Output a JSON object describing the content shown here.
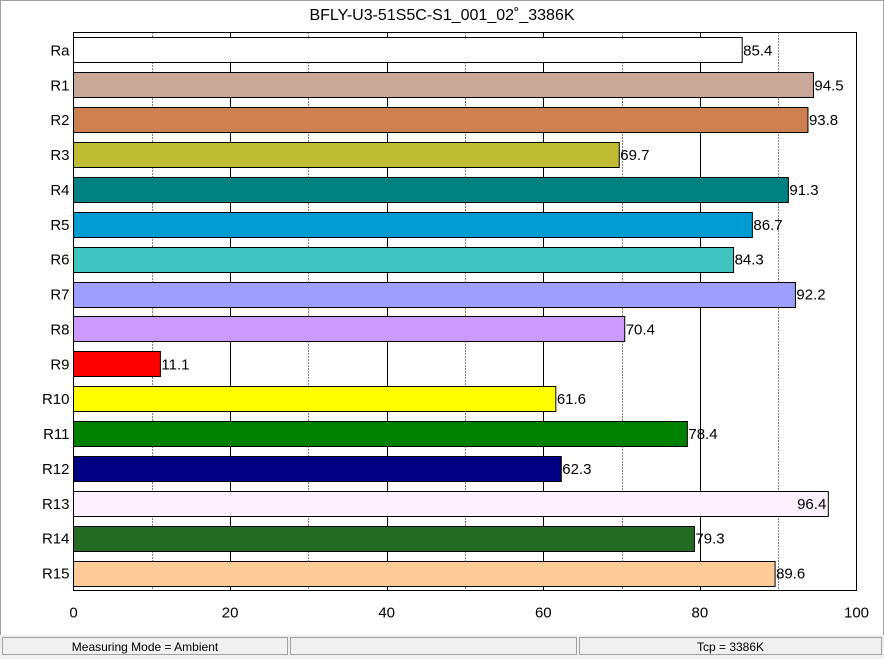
{
  "chart_data": {
    "type": "bar",
    "orientation": "horizontal",
    "title": "BFLY-U3-51S5C-S1_001_02˚_3386K",
    "xlabel": "",
    "ylabel": "",
    "xlim": [
      0,
      100
    ],
    "x_ticks": [
      0,
      20,
      40,
      60,
      80,
      100
    ],
    "grid": true,
    "categories": [
      "Ra",
      "R1",
      "R2",
      "R3",
      "R4",
      "R5",
      "R6",
      "R7",
      "R8",
      "R9",
      "R10",
      "R11",
      "R12",
      "R13",
      "R14",
      "R15"
    ],
    "values": [
      85.4,
      94.5,
      93.8,
      69.7,
      91.3,
      86.7,
      84.3,
      92.2,
      70.4,
      11.1,
      61.6,
      78.4,
      62.3,
      96.4,
      79.3,
      89.6
    ],
    "value_labels": [
      "85.4",
      "94.5",
      "93.8",
      "69.7",
      "91.3",
      "86.7",
      "84.3",
      "92.2",
      "70.4",
      "11.1",
      "61.6",
      "78.4",
      "62.3",
      "96.4",
      "79.3",
      "89.6"
    ],
    "colors": [
      "#ffffff",
      "#c9a898",
      "#cc8050",
      "#bfbc33",
      "#008080",
      "#009bd0",
      "#40c4c0",
      "#9e9eff",
      "#cc99ff",
      "#ff0000",
      "#ffff00",
      "#008000",
      "#000080",
      "#fff0ff",
      "#246b24",
      "#ffcc99"
    ]
  },
  "status_bar": {
    "measuring_mode": "Measuring Mode = Ambient",
    "middle": "",
    "tcp": "Tcp = 3386K"
  }
}
